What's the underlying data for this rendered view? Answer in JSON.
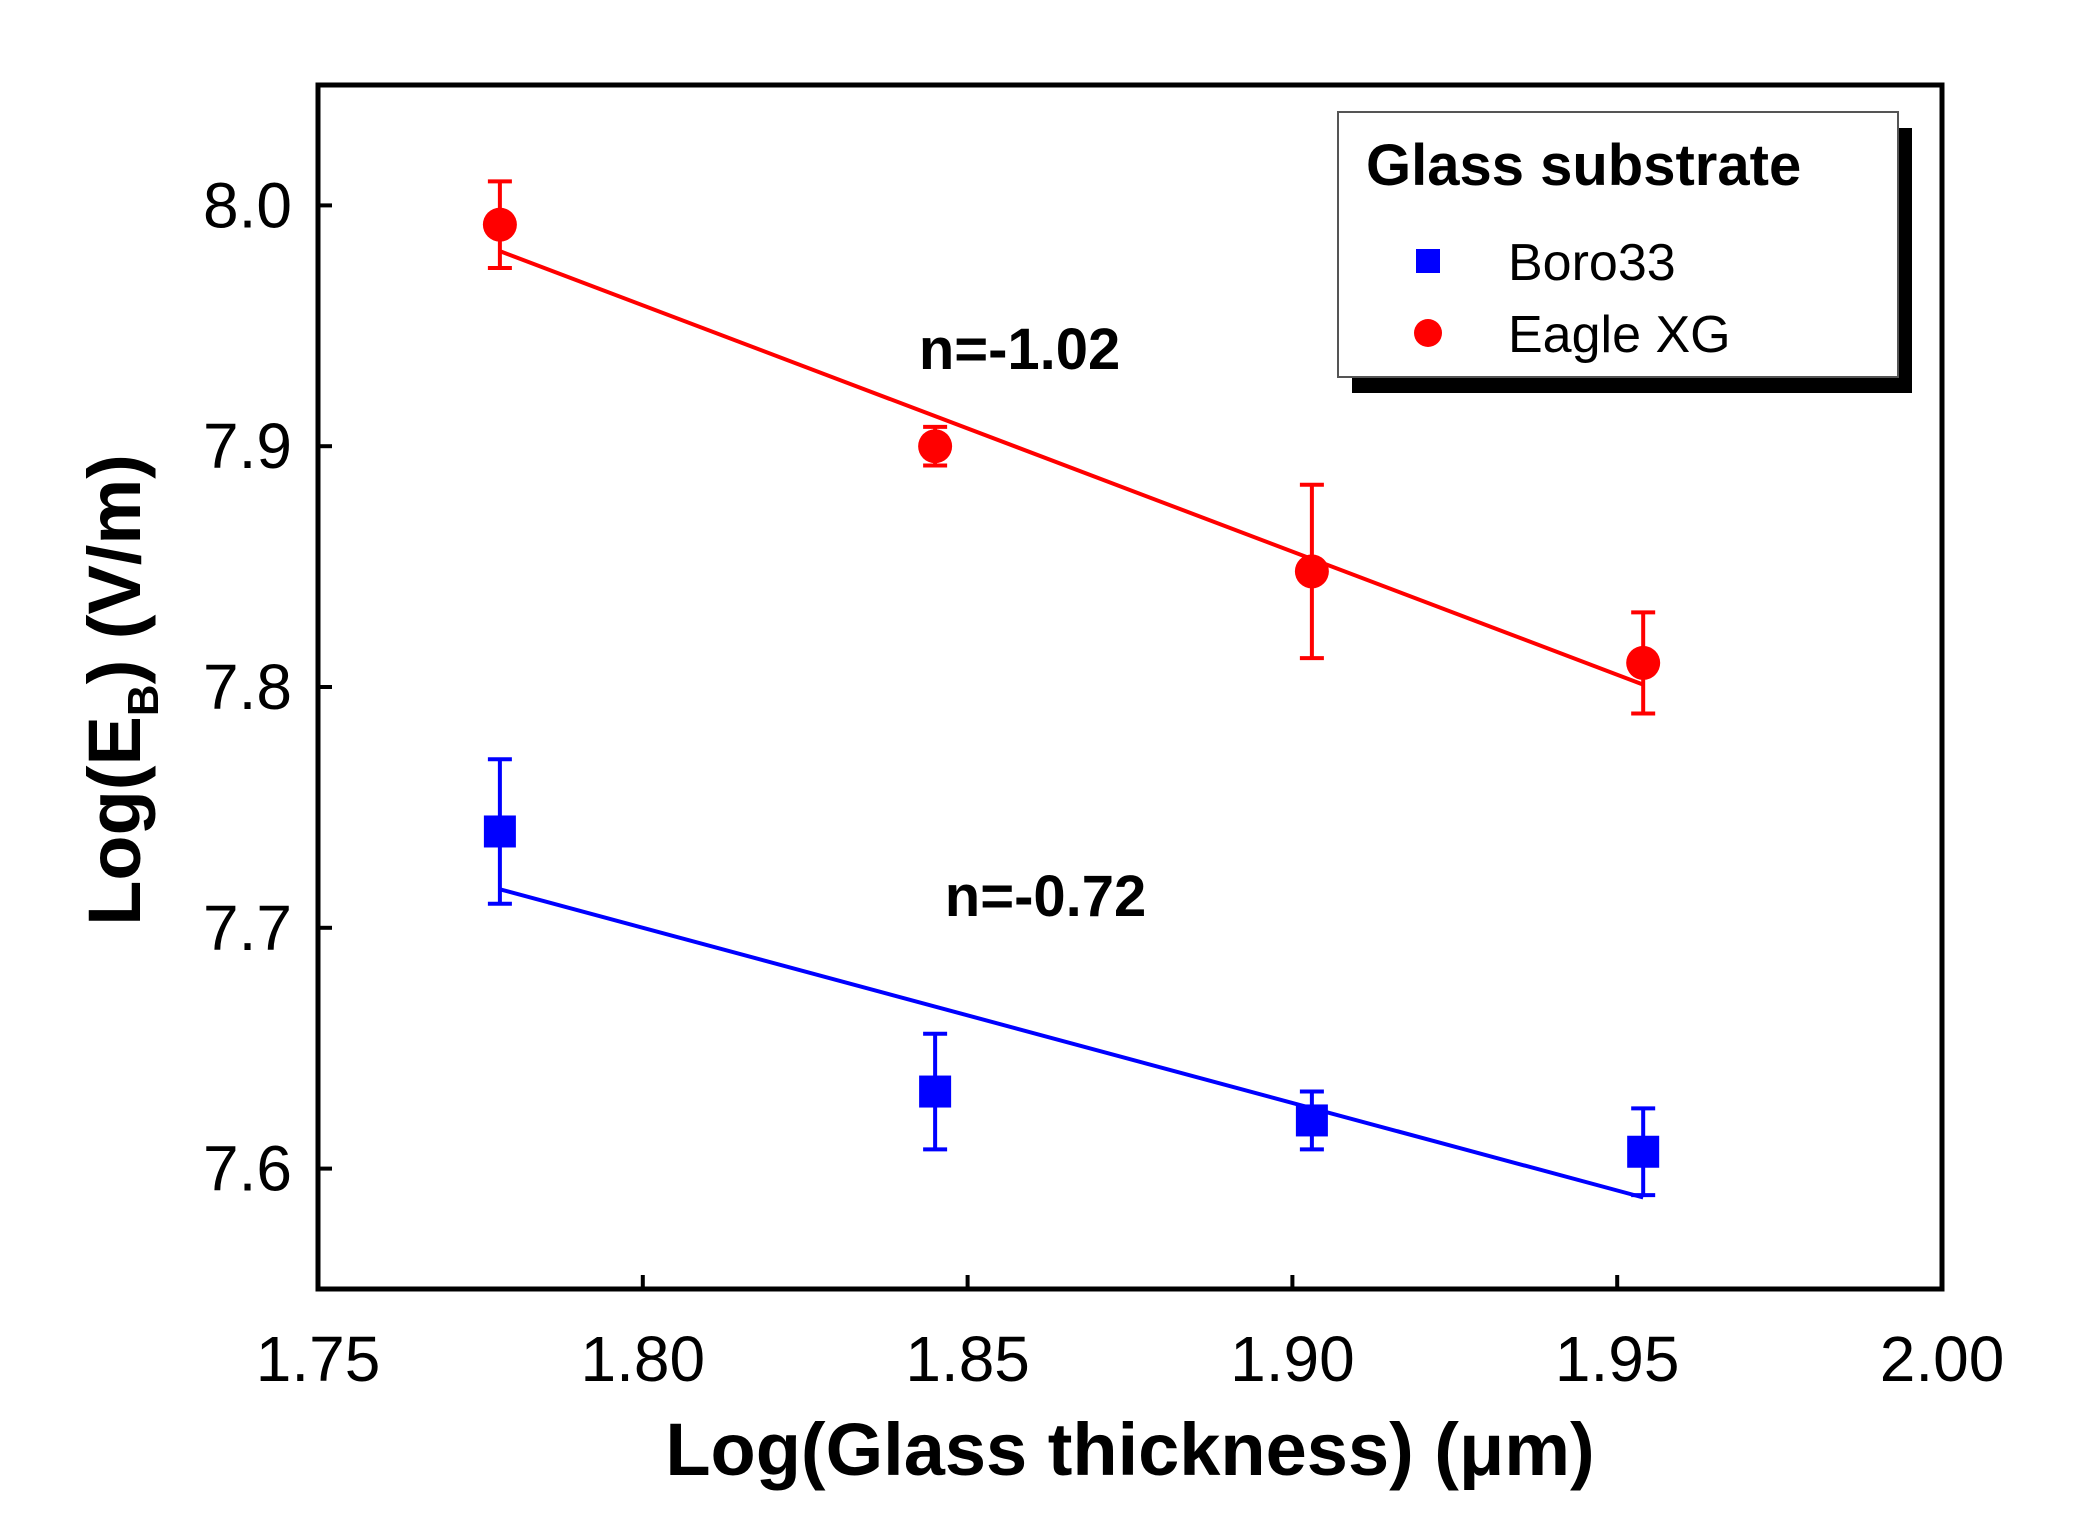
{
  "chart_data": {
    "type": "scatter",
    "xlabel": "Log(Glass thickness) (μm)",
    "ylabel_main": "Log(E",
    "ylabel_sub": "B",
    "ylabel_tail": ") (V/m)",
    "xlim": [
      1.75,
      2.0
    ],
    "ylim": [
      7.55,
      8.05
    ],
    "xticks": [
      1.75,
      1.8,
      1.85,
      1.9,
      1.95,
      2.0
    ],
    "xtick_labels": [
      "1.75",
      "1.80",
      "1.85",
      "1.90",
      "1.95",
      "2.00"
    ],
    "yticks": [
      7.6,
      7.7,
      7.8,
      7.9,
      8.0
    ],
    "ytick_labels": [
      "7.6",
      "7.7",
      "7.8",
      "7.9",
      "8.0"
    ],
    "legend": {
      "title": "Glass substrate",
      "location": "top-right"
    },
    "series": [
      {
        "name": "Boro33",
        "marker": "square",
        "color": "#0000ff",
        "x": [
          1.778,
          1.845,
          1.903,
          1.954
        ],
        "y": [
          7.74,
          7.632,
          7.62,
          7.607
        ],
        "err_low": [
          0.03,
          0.024,
          0.012,
          0.018
        ],
        "err_high": [
          0.03,
          0.024,
          0.012,
          0.018
        ],
        "fit": {
          "x": [
            1.778,
            1.954
          ],
          "y": [
            7.716,
            7.588
          ]
        },
        "annotation": {
          "text": "n=-0.72",
          "x": 1.862,
          "y": 7.705
        }
      },
      {
        "name": "Eagle XG",
        "marker": "circle",
        "color": "#ff0000",
        "x": [
          1.778,
          1.845,
          1.903,
          1.954
        ],
        "y": [
          7.992,
          7.9,
          7.848,
          7.81
        ],
        "err_low": [
          0.018,
          0.008,
          0.036,
          0.021
        ],
        "err_high": [
          0.018,
          0.008,
          0.036,
          0.021
        ],
        "fit": {
          "x": [
            1.778,
            1.954
          ],
          "y": [
            7.981,
            7.801
          ]
        },
        "annotation": {
          "text": "n=-1.02",
          "x": 1.858,
          "y": 7.932
        }
      }
    ]
  }
}
